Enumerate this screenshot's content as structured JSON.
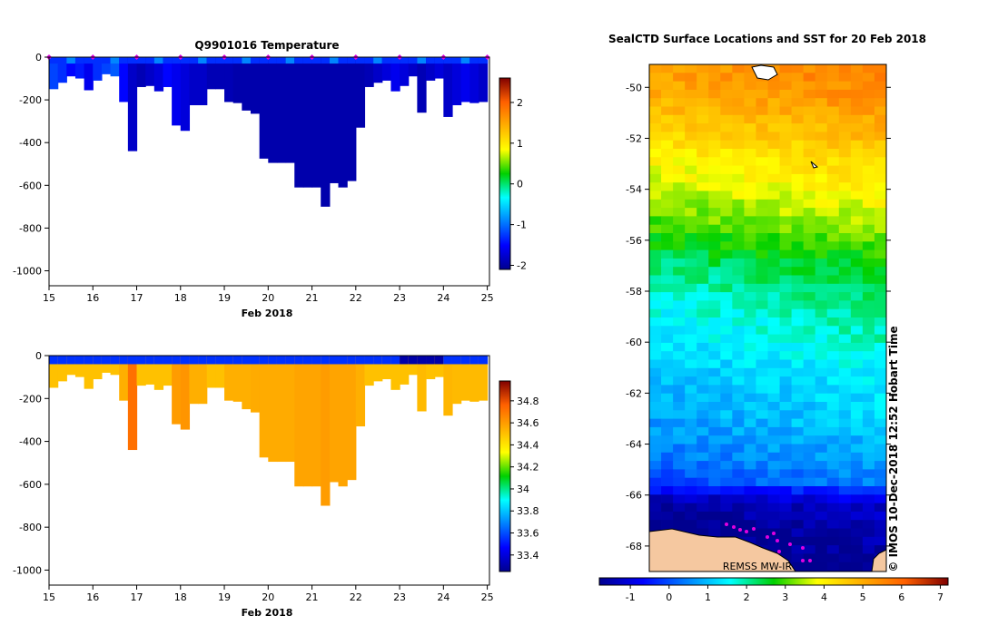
{
  "chart_data": [
    {
      "type": "heatmap",
      "title": "Q9901016  Temperature",
      "xlabel": "Feb 2018",
      "ylabel": "",
      "x_ticks": [
        "15",
        "16",
        "17",
        "18",
        "19",
        "20",
        "21",
        "22",
        "23",
        "24",
        "25"
      ],
      "xlim": [
        15,
        25.05
      ],
      "y_ticks": [
        "0",
        "-200",
        "-400",
        "-600",
        "-800",
        "-1000"
      ],
      "ylim": [
        -1070,
        0
      ],
      "grid": false,
      "colorbar": {
        "ticks": [
          "2",
          "1",
          "0",
          "-1",
          "-2"
        ],
        "range": [
          -2.1,
          2.6
        ]
      },
      "profiles": [
        {
          "x": 15.1,
          "depth": 150,
          "value": -1.2
        },
        {
          "x": 15.3,
          "depth": 120,
          "value": -1.3
        },
        {
          "x": 15.5,
          "depth": 90,
          "value": -1.5
        },
        {
          "x": 15.7,
          "depth": 100,
          "value": -1.4
        },
        {
          "x": 15.9,
          "depth": 155,
          "value": -1.6
        },
        {
          "x": 16.1,
          "depth": 110,
          "value": -1.3
        },
        {
          "x": 16.3,
          "depth": 80,
          "value": -1.2
        },
        {
          "x": 16.5,
          "depth": 90,
          "value": -1.1
        },
        {
          "x": 16.7,
          "depth": 210,
          "value": -1.5
        },
        {
          "x": 16.9,
          "depth": 440,
          "value": -1.8
        },
        {
          "x": 17.1,
          "depth": 140,
          "value": -1.9
        },
        {
          "x": 17.3,
          "depth": 135,
          "value": -1.8
        },
        {
          "x": 17.5,
          "depth": 160,
          "value": -1.7
        },
        {
          "x": 17.7,
          "depth": 140,
          "value": -1.5
        },
        {
          "x": 17.9,
          "depth": 320,
          "value": -1.6
        },
        {
          "x": 18.1,
          "depth": 345,
          "value": -1.7
        },
        {
          "x": 18.3,
          "depth": 225,
          "value": -1.8
        },
        {
          "x": 18.5,
          "depth": 225,
          "value": -1.8
        },
        {
          "x": 18.7,
          "depth": 150,
          "value": -1.9
        },
        {
          "x": 18.9,
          "depth": 150,
          "value": -1.9
        },
        {
          "x": 19.1,
          "depth": 210,
          "value": -1.9
        },
        {
          "x": 19.3,
          "depth": 215,
          "value": -1.95
        },
        {
          "x": 19.5,
          "depth": 250,
          "value": -1.95
        },
        {
          "x": 19.7,
          "depth": 265,
          "value": -1.95
        },
        {
          "x": 19.9,
          "depth": 475,
          "value": -1.95
        },
        {
          "x": 20.1,
          "depth": 495,
          "value": -1.95
        },
        {
          "x": 20.3,
          "depth": 495,
          "value": -1.95
        },
        {
          "x": 20.5,
          "depth": 495,
          "value": -1.95
        },
        {
          "x": 20.7,
          "depth": 610,
          "value": -1.95
        },
        {
          "x": 20.9,
          "depth": 610,
          "value": -1.95
        },
        {
          "x": 21.1,
          "depth": 610,
          "value": -1.95
        },
        {
          "x": 21.3,
          "depth": 700,
          "value": -1.95
        },
        {
          "x": 21.5,
          "depth": 590,
          "value": -1.95
        },
        {
          "x": 21.7,
          "depth": 610,
          "value": -1.95
        },
        {
          "x": 21.9,
          "depth": 580,
          "value": -1.95
        },
        {
          "x": 22.1,
          "depth": 330,
          "value": -1.95
        },
        {
          "x": 22.3,
          "depth": 140,
          "value": -1.9
        },
        {
          "x": 22.5,
          "depth": 120,
          "value": -1.8
        },
        {
          "x": 22.7,
          "depth": 110,
          "value": -1.7
        },
        {
          "x": 22.9,
          "depth": 160,
          "value": -1.6
        },
        {
          "x": 23.1,
          "depth": 135,
          "value": -1.7
        },
        {
          "x": 23.3,
          "depth": 90,
          "value": -1.8
        },
        {
          "x": 23.5,
          "depth": 260,
          "value": -1.9
        },
        {
          "x": 23.7,
          "depth": 110,
          "value": -1.8
        },
        {
          "x": 23.9,
          "depth": 100,
          "value": -1.7
        },
        {
          "x": 24.1,
          "depth": 280,
          "value": -1.8
        },
        {
          "x": 24.3,
          "depth": 225,
          "value": -1.7
        },
        {
          "x": 24.5,
          "depth": 210,
          "value": -1.6
        },
        {
          "x": 24.7,
          "depth": 215,
          "value": -1.7
        },
        {
          "x": 24.9,
          "depth": 210,
          "value": -1.8
        }
      ],
      "markers_x": [
        15.0,
        16.0,
        17.0,
        18.0,
        19.0,
        20.0,
        21.0,
        22.0,
        23.0,
        24.0,
        25.0
      ]
    },
    {
      "type": "heatmap",
      "title": "",
      "xlabel": "Feb 2018",
      "ylabel": "",
      "x_ticks": [
        "15",
        "16",
        "17",
        "18",
        "19",
        "20",
        "21",
        "22",
        "23",
        "24",
        "25"
      ],
      "xlim": [
        15,
        25.05
      ],
      "y_ticks": [
        "0",
        "-200",
        "-400",
        "-600",
        "-800",
        "-1000"
      ],
      "ylim": [
        -1070,
        0
      ],
      "grid": false,
      "colorbar": {
        "ticks": [
          "34.8",
          "34.6",
          "34.4",
          "34.2",
          "34",
          "33.8",
          "33.6",
          "33.4"
        ],
        "range": [
          33.25,
          34.98
        ]
      },
      "profiles": [
        {
          "x": 15.1,
          "depth": 150,
          "value": 34.5
        },
        {
          "x": 15.3,
          "depth": 120,
          "value": 34.5
        },
        {
          "x": 15.5,
          "depth": 90,
          "value": 34.5
        },
        {
          "x": 15.7,
          "depth": 100,
          "value": 34.5
        },
        {
          "x": 15.9,
          "depth": 155,
          "value": 34.5
        },
        {
          "x": 16.1,
          "depth": 110,
          "value": 34.5
        },
        {
          "x": 16.3,
          "depth": 80,
          "value": 34.5
        },
        {
          "x": 16.5,
          "depth": 90,
          "value": 34.5
        },
        {
          "x": 16.7,
          "depth": 210,
          "value": 34.55
        },
        {
          "x": 16.9,
          "depth": 440,
          "value": 34.72
        },
        {
          "x": 17.1,
          "depth": 140,
          "value": 34.5
        },
        {
          "x": 17.3,
          "depth": 135,
          "value": 34.5
        },
        {
          "x": 17.5,
          "depth": 160,
          "value": 34.5
        },
        {
          "x": 17.7,
          "depth": 140,
          "value": 34.5
        },
        {
          "x": 17.9,
          "depth": 320,
          "value": 34.6
        },
        {
          "x": 18.1,
          "depth": 345,
          "value": 34.62
        },
        {
          "x": 18.3,
          "depth": 225,
          "value": 34.55
        },
        {
          "x": 18.5,
          "depth": 225,
          "value": 34.55
        },
        {
          "x": 18.7,
          "depth": 150,
          "value": 34.5
        },
        {
          "x": 18.9,
          "depth": 150,
          "value": 34.5
        },
        {
          "x": 19.1,
          "depth": 210,
          "value": 34.55
        },
        {
          "x": 19.3,
          "depth": 215,
          "value": 34.55
        },
        {
          "x": 19.5,
          "depth": 250,
          "value": 34.55
        },
        {
          "x": 19.7,
          "depth": 265,
          "value": 34.56
        },
        {
          "x": 19.9,
          "depth": 475,
          "value": 34.56
        },
        {
          "x": 20.1,
          "depth": 495,
          "value": 34.56
        },
        {
          "x": 20.3,
          "depth": 495,
          "value": 34.56
        },
        {
          "x": 20.5,
          "depth": 495,
          "value": 34.56
        },
        {
          "x": 20.7,
          "depth": 610,
          "value": 34.58
        },
        {
          "x": 20.9,
          "depth": 610,
          "value": 34.58
        },
        {
          "x": 21.1,
          "depth": 610,
          "value": 34.58
        },
        {
          "x": 21.3,
          "depth": 700,
          "value": 34.6
        },
        {
          "x": 21.5,
          "depth": 590,
          "value": 34.58
        },
        {
          "x": 21.7,
          "depth": 610,
          "value": 34.58
        },
        {
          "x": 21.9,
          "depth": 580,
          "value": 34.58
        },
        {
          "x": 22.1,
          "depth": 330,
          "value": 34.55
        },
        {
          "x": 22.3,
          "depth": 140,
          "value": 34.5
        },
        {
          "x": 22.5,
          "depth": 120,
          "value": 34.5
        },
        {
          "x": 22.7,
          "depth": 110,
          "value": 34.5
        },
        {
          "x": 22.9,
          "depth": 160,
          "value": 34.5
        },
        {
          "x": 23.1,
          "depth": 135,
          "value": 34.5
        },
        {
          "x": 23.3,
          "depth": 90,
          "value": 34.5
        },
        {
          "x": 23.5,
          "depth": 260,
          "value": 34.52
        },
        {
          "x": 23.7,
          "depth": 110,
          "value": 34.5
        },
        {
          "x": 23.9,
          "depth": 100,
          "value": 34.5
        },
        {
          "x": 24.1,
          "depth": 280,
          "value": 34.53
        },
        {
          "x": 24.3,
          "depth": 225,
          "value": 34.52
        },
        {
          "x": 24.5,
          "depth": 210,
          "value": 34.52
        },
        {
          "x": 24.7,
          "depth": 215,
          "value": 34.52
        },
        {
          "x": 24.9,
          "depth": 210,
          "value": 34.52
        }
      ]
    },
    {
      "type": "heatmap",
      "title": "SealCTD Surface Locations and SST for 20 Feb 2018",
      "xlabel": "",
      "ylabel": "",
      "y_ticks": [
        "-50",
        "-52",
        "-54",
        "-56",
        "-58",
        "-60",
        "-62",
        "-64",
        "-66",
        "-68"
      ],
      "ylim": [
        -69.0,
        -49.1
      ],
      "grid": false,
      "colorbar": {
        "ticks": [
          "-1",
          "0",
          "1",
          "2",
          "3",
          "4",
          "5",
          "6",
          "7"
        ],
        "range": [
          -1.8,
          7.2
        ]
      },
      "source_label": "REMSS MW-IR",
      "side_label": "© IMOS 10-Dec-2018 12:52 Hobart Time",
      "sst_by_latitude": [
        {
          "lat": -49.5,
          "value": 5.4
        },
        {
          "lat": -51.0,
          "value": 5.0
        },
        {
          "lat": -52.5,
          "value": 4.3
        },
        {
          "lat": -54.0,
          "value": 3.8
        },
        {
          "lat": -55.5,
          "value": 3.2
        },
        {
          "lat": -57.0,
          "value": 2.4
        },
        {
          "lat": -58.5,
          "value": 1.9
        },
        {
          "lat": -60.0,
          "value": 1.6
        },
        {
          "lat": -61.5,
          "value": 1.2
        },
        {
          "lat": -63.0,
          "value": 1.0
        },
        {
          "lat": -64.5,
          "value": 0.6
        },
        {
          "lat": -65.5,
          "value": 0.2
        },
        {
          "lat": -66.3,
          "value": -1.4
        },
        {
          "lat": -67.5,
          "value": -1.7
        },
        {
          "lat": -68.6,
          "value": -1.8
        }
      ]
    }
  ],
  "colors": {
    "marker": "#e000e0",
    "land": "#f5c8a0",
    "frame": "#000000"
  }
}
